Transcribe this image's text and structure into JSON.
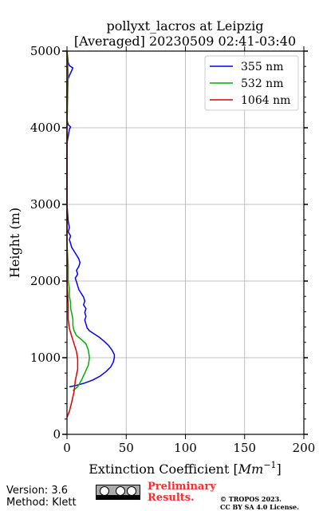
{
  "chart_data": {
    "type": "line",
    "title": "pollyxt_lacros at Leipzig",
    "subtitle": "[Averaged] 20230509 02:41-03:40",
    "xlabel": "Extinction Coefficient [$Mm^{-1}$]",
    "xlabel_text": "Extinction Coefficient [",
    "xlabel_math": "Mm",
    "xlabel_sup": "−1",
    "xlabel_end": "]",
    "ylabel": "Height (m)",
    "xlim": [
      0,
      200
    ],
    "ylim": [
      0,
      5000
    ],
    "x_ticks": [
      0,
      50,
      100,
      150,
      200
    ],
    "y_ticks": [
      0,
      1000,
      2000,
      3000,
      4000,
      5000
    ],
    "grid": true,
    "legend_position": "top-right",
    "series": [
      {
        "name": "355 nm",
        "color": "#0000ff",
        "points": [
          [
            2,
            620
          ],
          [
            8,
            640
          ],
          [
            15,
            670
          ],
          [
            22,
            710
          ],
          [
            28,
            760
          ],
          [
            33,
            820
          ],
          [
            37,
            880
          ],
          [
            39,
            940
          ],
          [
            40,
            1000
          ],
          [
            40,
            1040
          ],
          [
            38,
            1100
          ],
          [
            35,
            1160
          ],
          [
            31,
            1220
          ],
          [
            27,
            1270
          ],
          [
            23,
            1310
          ],
          [
            19,
            1350
          ],
          [
            17,
            1390
          ],
          [
            16,
            1440
          ],
          [
            15,
            1490
          ],
          [
            16,
            1540
          ],
          [
            15,
            1590
          ],
          [
            16,
            1640
          ],
          [
            14,
            1690
          ],
          [
            15,
            1740
          ],
          [
            14,
            1790
          ],
          [
            12,
            1840
          ],
          [
            10,
            1890
          ],
          [
            9,
            1940
          ],
          [
            8,
            1990
          ],
          [
            7,
            2040
          ],
          [
            9,
            2090
          ],
          [
            8,
            2140
          ],
          [
            10,
            2190
          ],
          [
            11,
            2240
          ],
          [
            10,
            2290
          ],
          [
            8,
            2340
          ],
          [
            6,
            2390
          ],
          [
            4,
            2440
          ],
          [
            3,
            2490
          ],
          [
            2,
            2540
          ],
          [
            3,
            2590
          ],
          [
            1,
            2640
          ],
          [
            2,
            2700
          ],
          [
            1,
            2780
          ],
          [
            0,
            3000
          ],
          [
            0,
            3800
          ],
          [
            2,
            3980
          ],
          [
            3,
            4010
          ],
          [
            1,
            4040
          ],
          [
            0,
            4100
          ],
          [
            0,
            4600
          ],
          [
            2,
            4680
          ],
          [
            5,
            4780
          ],
          [
            2,
            4810
          ],
          [
            1,
            4850
          ],
          [
            0,
            5000
          ]
        ]
      },
      {
        "name": "532 nm",
        "color": "#00b000",
        "points": [
          [
            5,
            570
          ],
          [
            9,
            620
          ],
          [
            12,
            700
          ],
          [
            15,
            800
          ],
          [
            18,
            900
          ],
          [
            19,
            1000
          ],
          [
            18,
            1100
          ],
          [
            16,
            1180
          ],
          [
            12,
            1240
          ],
          [
            8,
            1290
          ],
          [
            6,
            1350
          ],
          [
            5,
            1420
          ],
          [
            5,
            1500
          ],
          [
            4,
            1580
          ],
          [
            3,
            1650
          ],
          [
            3,
            1720
          ],
          [
            2,
            1800
          ],
          [
            2,
            1900
          ],
          [
            1,
            2000
          ],
          [
            1,
            2200
          ],
          [
            0,
            2500
          ],
          [
            0,
            3000
          ],
          [
            0,
            4000
          ],
          [
            1,
            4700
          ],
          [
            0,
            5000
          ]
        ]
      },
      {
        "name": "1064 nm",
        "color": "#e00000",
        "points": [
          [
            0,
            220
          ],
          [
            2,
            300
          ],
          [
            4,
            420
          ],
          [
            6,
            560
          ],
          [
            7,
            700
          ],
          [
            9,
            850
          ],
          [
            9,
            980
          ],
          [
            8,
            1080
          ],
          [
            6,
            1180
          ],
          [
            4,
            1280
          ],
          [
            2,
            1380
          ],
          [
            1,
            1500
          ],
          [
            1,
            1700
          ],
          [
            0,
            2000
          ],
          [
            0,
            3000
          ],
          [
            0,
            4000
          ],
          [
            0,
            5000
          ]
        ]
      }
    ]
  },
  "footer": {
    "version": "Version: 3.6",
    "method": "Method: Klett",
    "preliminary_line1": "Preliminary",
    "preliminary_line2": "Results.",
    "copyright_line1": "© TROPOS 2023.",
    "copyright_line2": "CC BY SA 4.0 License."
  }
}
